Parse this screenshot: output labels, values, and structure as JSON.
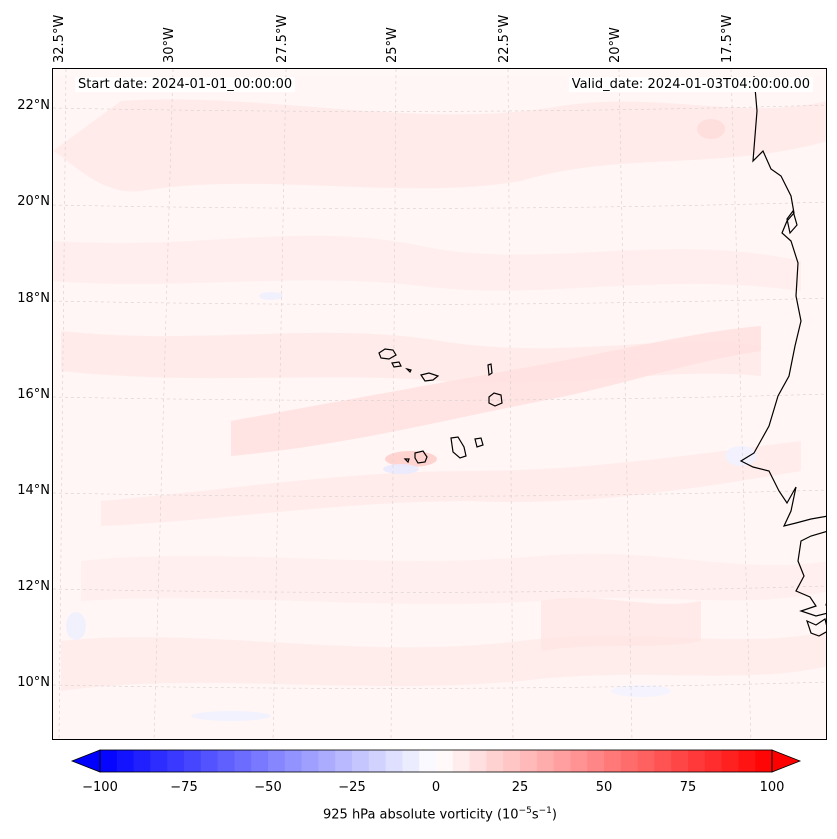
{
  "map": {
    "start_date": "Start date: 2024-01-01_00:00:00",
    "valid_date": "Valid_date: 2024-01-03T04:00:00.00",
    "longitude_labels": [
      "32.5°W",
      "30°W",
      "27.5°W",
      "25°W",
      "22.5°W",
      "20°W",
      "17.5°W"
    ],
    "latitude_labels": [
      "22°N",
      "20°N",
      "18°N",
      "16°N",
      "14°N",
      "12°N",
      "10°N"
    ],
    "field": "925 hPa absolute vorticity",
    "feature_names": [
      "Cape Verde islands",
      "West African coastline"
    ]
  },
  "colorbar": {
    "label_text": "925 hPa absolute vorticity (10",
    "label_exp1": "−5",
    "label_mid": "s",
    "label_exp2": "−1",
    "label_end": ")",
    "ticks": [
      "−100",
      "−75",
      "−50",
      "−25",
      "0",
      "25",
      "50",
      "75",
      "100"
    ],
    "min": -100,
    "max": 100,
    "negative_color": "#0000ff",
    "zero_color": "#ffffff",
    "positive_color": "#ff0000"
  }
}
